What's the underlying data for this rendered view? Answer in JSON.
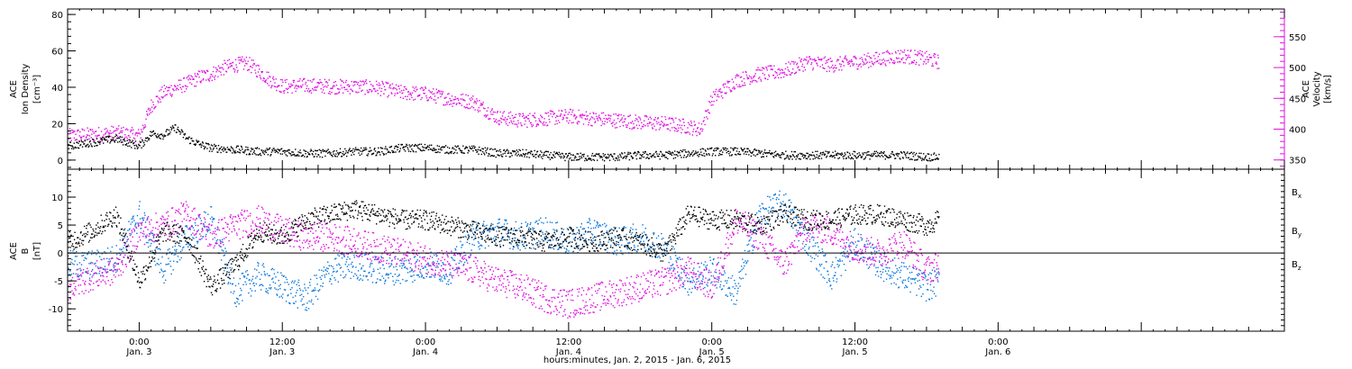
{
  "chart_data": {
    "type": "scatter",
    "title": "",
    "xlabel": "hours:minutes, Jan.  2, 2015 - Jan.  6, 2015",
    "xlim_hours": [
      -6,
      96
    ],
    "x_ticks": [
      {
        "hour": 0,
        "time": "0:00",
        "date": "Jan. 3"
      },
      {
        "hour": 12,
        "time": "12:00",
        "date": "Jan. 3"
      },
      {
        "hour": 24,
        "time": "0:00",
        "date": "Jan. 4"
      },
      {
        "hour": 36,
        "time": "12:00",
        "date": "Jan. 4"
      },
      {
        "hour": 48,
        "time": "0:00",
        "date": "Jan. 5"
      },
      {
        "hour": 60,
        "time": "12:00",
        "date": "Jan. 5"
      },
      {
        "hour": 72,
        "time": "0:00",
        "date": "Jan. 6"
      }
    ],
    "panels": [
      {
        "id": "density-velocity",
        "left_axis": {
          "label_lines": [
            "ACE",
            "Ion Density",
            "[cm⁻³]"
          ],
          "ylim": [
            -5,
            83
          ],
          "ticks": [
            0,
            20,
            40,
            60,
            80
          ]
        },
        "right_axis": {
          "label_lines": [
            "ACE",
            "Velocity",
            "[km/s]"
          ],
          "ylim": [
            335,
            595
          ],
          "ticks": [
            350,
            400,
            450,
            500,
            550
          ],
          "color": "#e010e0"
        },
        "series": [
          {
            "axis": "left",
            "color": "#000000",
            "points": [
              [
                -6,
                8
              ],
              [
                -4,
                10
              ],
              [
                -2,
                12
              ],
              [
                -1,
                10
              ],
              [
                0,
                8
              ],
              [
                1,
                15
              ],
              [
                2,
                14
              ],
              [
                3,
                18
              ],
              [
                4,
                12
              ],
              [
                5,
                9
              ],
              [
                6,
                7
              ],
              [
                8,
                6
              ],
              [
                10,
                5
              ],
              [
                12,
                5
              ],
              [
                14,
                4
              ],
              [
                16,
                4
              ],
              [
                18,
                5
              ],
              [
                20,
                5
              ],
              [
                22,
                7
              ],
              [
                24,
                7
              ],
              [
                26,
                6
              ],
              [
                28,
                6
              ],
              [
                30,
                4
              ],
              [
                32,
                4
              ],
              [
                34,
                3
              ],
              [
                36,
                2
              ],
              [
                38,
                2
              ],
              [
                40,
                2
              ],
              [
                42,
                3
              ],
              [
                44,
                3
              ],
              [
                46,
                4
              ],
              [
                48,
                5
              ],
              [
                50,
                5
              ],
              [
                52,
                4
              ],
              [
                54,
                3
              ],
              [
                56,
                3
              ],
              [
                58,
                3
              ],
              [
                60,
                3
              ],
              [
                62,
                3
              ],
              [
                64,
                3
              ],
              [
                66,
                2
              ],
              [
                67,
                2
              ]
            ]
          },
          {
            "axis": "right",
            "color": "#e010e0",
            "points": [
              [
                -6,
                390
              ],
              [
                -4,
                392
              ],
              [
                -2,
                395
              ],
              [
                0,
                390
              ],
              [
                1,
                440
              ],
              [
                2,
                460
              ],
              [
                3,
                468
              ],
              [
                4,
                475
              ],
              [
                5,
                485
              ],
              [
                6,
                490
              ],
              [
                7,
                500
              ],
              [
                8,
                505
              ],
              [
                9,
                508
              ],
              [
                10,
                495
              ],
              [
                11,
                480
              ],
              [
                12,
                470
              ],
              [
                14,
                472
              ],
              [
                16,
                470
              ],
              [
                18,
                470
              ],
              [
                20,
                468
              ],
              [
                22,
                460
              ],
              [
                24,
                458
              ],
              [
                26,
                450
              ],
              [
                28,
                445
              ],
              [
                30,
                420
              ],
              [
                32,
                415
              ],
              [
                34,
                418
              ],
              [
                36,
                422
              ],
              [
                38,
                418
              ],
              [
                40,
                415
              ],
              [
                42,
                412
              ],
              [
                44,
                410
              ],
              [
                46,
                405
              ],
              [
                47,
                400
              ],
              [
                48,
                450
              ],
              [
                50,
                480
              ],
              [
                52,
                490
              ],
              [
                54,
                495
              ],
              [
                56,
                510
              ],
              [
                58,
                505
              ],
              [
                60,
                510
              ],
              [
                62,
                515
              ],
              [
                64,
                520
              ],
              [
                66,
                515
              ],
              [
                67,
                510
              ]
            ]
          }
        ]
      },
      {
        "id": "magnetic-field",
        "left_axis": {
          "label_lines": [
            "ACE",
            "B",
            "[nT]"
          ],
          "ylim": [
            -14,
            15
          ],
          "ticks": [
            -10,
            -5,
            0,
            5,
            10
          ]
        },
        "legend": [
          "Bx",
          "By",
          "Bz"
        ],
        "series": [
          {
            "name": "Bx",
            "color": "#000000",
            "points": [
              [
                -6,
                2
              ],
              [
                -4,
                4
              ],
              [
                -2,
                7
              ],
              [
                0,
                -5
              ],
              [
                2,
                4
              ],
              [
                4,
                3
              ],
              [
                6,
                -6
              ],
              [
                8,
                -2
              ],
              [
                10,
                4
              ],
              [
                12,
                3
              ],
              [
                14,
                6
              ],
              [
                16,
                7
              ],
              [
                18,
                8
              ],
              [
                20,
                7
              ],
              [
                22,
                6
              ],
              [
                24,
                6
              ],
              [
                26,
                5
              ],
              [
                28,
                4
              ],
              [
                30,
                3
              ],
              [
                32,
                3
              ],
              [
                34,
                2
              ],
              [
                36,
                3
              ],
              [
                38,
                2
              ],
              [
                40,
                3
              ],
              [
                42,
                2
              ],
              [
                44,
                0
              ],
              [
                46,
                7
              ],
              [
                48,
                6
              ],
              [
                50,
                6
              ],
              [
                52,
                5
              ],
              [
                54,
                7
              ],
              [
                56,
                6
              ],
              [
                58,
                6
              ],
              [
                60,
                7
              ],
              [
                62,
                7
              ],
              [
                64,
                6
              ],
              [
                66,
                5
              ],
              [
                67,
                6
              ]
            ]
          },
          {
            "name": "By",
            "color": "#0a78dc",
            "points": [
              [
                -6,
                -2
              ],
              [
                -4,
                -2
              ],
              [
                -2,
                -1
              ],
              [
                0,
                7
              ],
              [
                2,
                -3
              ],
              [
                4,
                3
              ],
              [
                6,
                6
              ],
              [
                8,
                -7
              ],
              [
                10,
                -4
              ],
              [
                12,
                -6
              ],
              [
                14,
                -8
              ],
              [
                16,
                -3
              ],
              [
                18,
                -2
              ],
              [
                20,
                -3
              ],
              [
                22,
                -3
              ],
              [
                24,
                -2
              ],
              [
                26,
                -3
              ],
              [
                28,
                3
              ],
              [
                30,
                4
              ],
              [
                32,
                3
              ],
              [
                34,
                4
              ],
              [
                36,
                2
              ],
              [
                38,
                4
              ],
              [
                40,
                2
              ],
              [
                42,
                3
              ],
              [
                44,
                1
              ],
              [
                46,
                -5
              ],
              [
                48,
                -3
              ],
              [
                50,
                -7
              ],
              [
                52,
                7
              ],
              [
                54,
                9
              ],
              [
                56,
                2
              ],
              [
                58,
                -4
              ],
              [
                60,
                2
              ],
              [
                62,
                -2
              ],
              [
                64,
                -4
              ],
              [
                66,
                -6
              ],
              [
                67,
                -5
              ]
            ]
          },
          {
            "name": "Bz",
            "color": "#e010e0",
            "points": [
              [
                -6,
                -6
              ],
              [
                -4,
                -4
              ],
              [
                -2,
                -3
              ],
              [
                0,
                4
              ],
              [
                2,
                5
              ],
              [
                4,
                7
              ],
              [
                6,
                3
              ],
              [
                8,
                5
              ],
              [
                10,
                6
              ],
              [
                12,
                4
              ],
              [
                14,
                3
              ],
              [
                16,
                3
              ],
              [
                18,
                2
              ],
              [
                20,
                1
              ],
              [
                22,
                0
              ],
              [
                24,
                -1
              ],
              [
                26,
                -2
              ],
              [
                28,
                -3
              ],
              [
                30,
                -5
              ],
              [
                32,
                -6
              ],
              [
                34,
                -8
              ],
              [
                36,
                -9
              ],
              [
                38,
                -8
              ],
              [
                40,
                -7
              ],
              [
                42,
                -6
              ],
              [
                44,
                -5
              ],
              [
                46,
                -3
              ],
              [
                48,
                -6
              ],
              [
                50,
                6
              ],
              [
                52,
                3
              ],
              [
                54,
                -2
              ],
              [
                56,
                5
              ],
              [
                58,
                4
              ],
              [
                60,
                1
              ],
              [
                62,
                0
              ],
              [
                64,
                2
              ],
              [
                66,
                -3
              ],
              [
                67,
                -2
              ]
            ]
          }
        ]
      }
    ]
  }
}
